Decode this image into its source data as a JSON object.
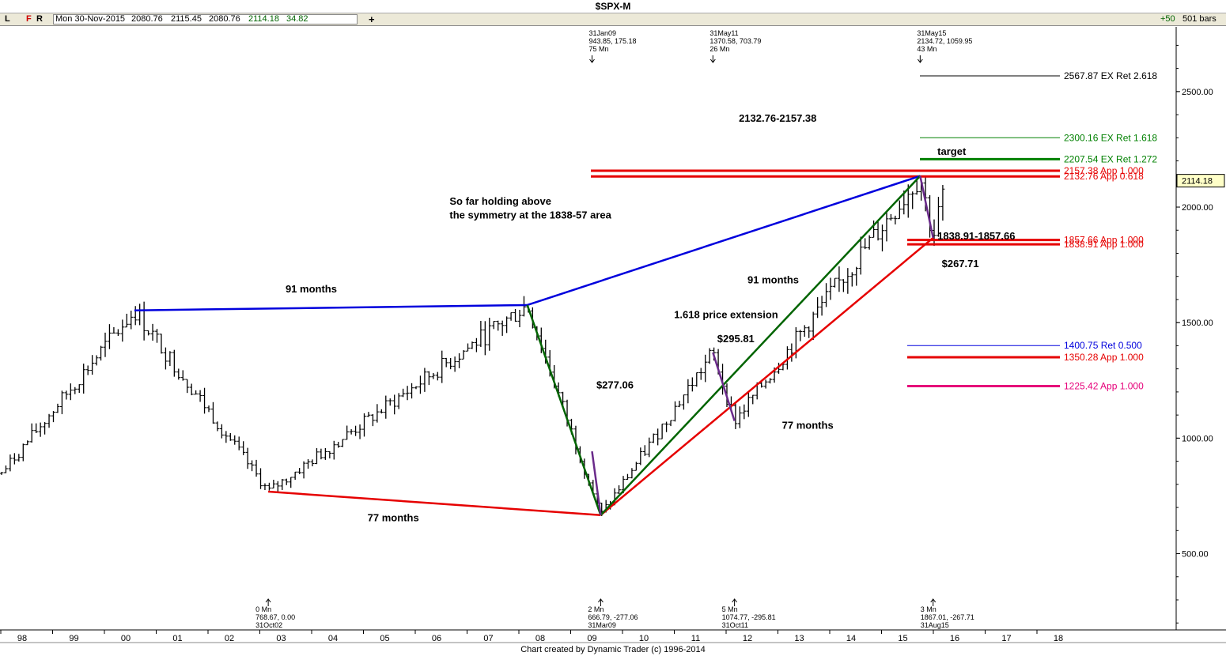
{
  "title": "$SPX-M",
  "toolbar": {
    "btn_l": "L",
    "btn_f": "F",
    "btn_r": "R",
    "date": "Mon 30-Nov-2015",
    "open": "2080.76",
    "high": "2115.45",
    "low": "2080.76",
    "close": "2114.18",
    "change": "34.82",
    "plus": "+",
    "bars_step": "+50",
    "bars": "501 bars"
  },
  "footer": "Chart created by Dynamic Trader  (c) 1996-2014",
  "colors": {
    "blue": "#0000dd",
    "red": "#e60000",
    "green": "#006400",
    "darkgreen": "#008000",
    "magenta": "#e6007a",
    "purple": "#6a2a8a"
  },
  "chart_data": {
    "type": "bar",
    "title": "$SPX-M",
    "x_ticks": [
      "98",
      "99",
      "00",
      "01",
      "02",
      "03",
      "04",
      "05",
      "06",
      "07",
      "08",
      "09",
      "10",
      "11",
      "12",
      "13",
      "14",
      "15",
      "16",
      "17",
      "18"
    ],
    "y_ticks": [
      "500.00",
      "1000.00",
      "1500.00",
      "2000.00",
      "2500.00"
    ],
    "ylim": [
      170,
      2780
    ],
    "current_price": "2114.18",
    "pivots": [
      {
        "date": "2000-03",
        "price": 1553
      },
      {
        "date": "2002-10",
        "price": 768.67
      },
      {
        "date": "2007-10",
        "price": 1576
      },
      {
        "date": "2009-03",
        "price": 666.79
      },
      {
        "date": "2011-05",
        "price": 1370.58
      },
      {
        "date": "2011-10",
        "price": 1074.77
      },
      {
        "date": "2015-05",
        "price": 2134.72
      },
      {
        "date": "2015-08",
        "price": 1867.01
      },
      {
        "date": "2015-11",
        "price": 2114.18
      }
    ],
    "top_annotations": [
      {
        "date": "2009-01",
        "lines": [
          "31Jan09",
          "943.85, 175.18",
          "75 Mn"
        ]
      },
      {
        "date": "2011-05",
        "lines": [
          "31May11",
          "1370.58, 703.79",
          "26 Mn"
        ]
      },
      {
        "date": "2015-05",
        "lines": [
          "31May15",
          "2134.72, 1059.95",
          "43 Mn"
        ]
      }
    ],
    "bottom_annotations": [
      {
        "date": "2002-10",
        "lines": [
          "0 Mn",
          "768.67, 0.00",
          "31Oct02"
        ]
      },
      {
        "date": "2009-03",
        "lines": [
          "2 Mn",
          "666.79, -277.06",
          "31Mar09"
        ]
      },
      {
        "date": "2011-10",
        "lines": [
          "5 Mn",
          "1074.77, -295.81",
          "31Oct11"
        ]
      },
      {
        "date": "2015-08",
        "lines": [
          "3 Mn",
          "1867.01, -267.71",
          "31Aug15"
        ]
      }
    ],
    "levels": [
      {
        "price": 2567.87,
        "label": "2567.87 EX Ret 2.618",
        "color": "#000000",
        "width": 1
      },
      {
        "price": 2300.16,
        "label": "2300.16 EX Ret 1.618",
        "color": "#008000",
        "width": 1
      },
      {
        "price": 2207.54,
        "label": "2207.54 EX Ret 1.272",
        "color": "#008000",
        "width": 3
      },
      {
        "price": 2157.38,
        "label": "2157.38 App 1.000",
        "color": "#e60000",
        "width": 3
      },
      {
        "price": 2132.76,
        "label": "2132.76 App 0.618",
        "color": "#e60000",
        "width": 3
      },
      {
        "price": 1857.66,
        "label": "1857.66 App 1.000",
        "color": "#e60000",
        "width": 3
      },
      {
        "price": 1838.91,
        "label": "1838.91 App 1.000",
        "color": "#e60000",
        "width": 3
      },
      {
        "price": 1400.75,
        "label": "1400.75 Ret 0.500",
        "color": "#0000dd",
        "width": 1
      },
      {
        "price": 1350.28,
        "label": "1350.28 App 1.000",
        "color": "#e60000",
        "width": 3
      },
      {
        "price": 1225.42,
        "label": "1225.42 App 1.000",
        "color": "#e6007a",
        "width": 3
      }
    ],
    "labels": [
      {
        "text": "2132.76-2157.38",
        "date": "2011-11",
        "price": 2370
      },
      {
        "text": "target",
        "date": "2015-09",
        "price": 2225
      },
      {
        "text": "So far holding above",
        "date": "2006-04",
        "price": 2010
      },
      {
        "text": "the symmetry at the 1838-57 area",
        "date": "2006-04",
        "price": 1950
      },
      {
        "text": "1838.91-1857.66",
        "date": "2015-09",
        "price": 1860
      },
      {
        "text": "$267.71",
        "date": "2015-10",
        "price": 1740
      },
      {
        "text": "91 months",
        "date": "2003-02",
        "price": 1630
      },
      {
        "text": "91 months",
        "date": "2012-01",
        "price": 1670
      },
      {
        "text": "1.618 price extension",
        "date": "2010-08",
        "price": 1520
      },
      {
        "text": "$295.81",
        "date": "2011-06",
        "price": 1415
      },
      {
        "text": "$277.06",
        "date": "2009-02",
        "price": 1215
      },
      {
        "text": "77 months",
        "date": "2012-09",
        "price": 1040
      },
      {
        "text": "77 months",
        "date": "2004-09",
        "price": 640
      }
    ]
  }
}
